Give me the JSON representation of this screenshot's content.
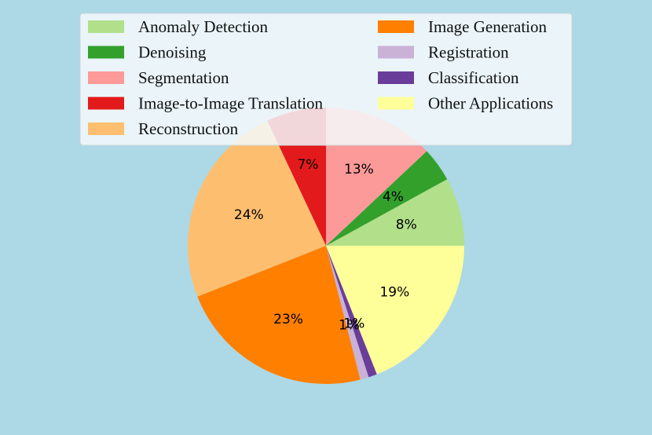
{
  "chart_data": {
    "type": "pie",
    "title": "",
    "start_angle_deg": 0,
    "direction": "counterclockwise",
    "legend_placement": "top-center",
    "slices": [
      {
        "label": "Anomaly Detection",
        "value": 8,
        "pct_label": "8%",
        "color": "#b2df8a"
      },
      {
        "label": "Denoising",
        "value": 4,
        "pct_label": "4%",
        "color": "#33a02c"
      },
      {
        "label": "Segmentation",
        "value": 13,
        "pct_label": "13%",
        "color": "#fb9a99"
      },
      {
        "label": "Image-to-Image Translation",
        "value": 7,
        "pct_label": "7%",
        "color": "#e31a1c"
      },
      {
        "label": "Reconstruction",
        "value": 24,
        "pct_label": "24%",
        "color": "#fdbf6f"
      },
      {
        "label": "Image Generation",
        "value": 23,
        "pct_label": "23%",
        "color": "#ff7f00"
      },
      {
        "label": "Registration",
        "value": 1,
        "pct_label": "1%",
        "color": "#cab2d6"
      },
      {
        "label": "Classification",
        "value": 1,
        "pct_label": "1%",
        "color": "#6a3d9a"
      },
      {
        "label": "Other Applications",
        "value": 19,
        "pct_label": "19%",
        "color": "#ffff99"
      }
    ]
  },
  "page": {
    "background": "#ADD8E6"
  }
}
